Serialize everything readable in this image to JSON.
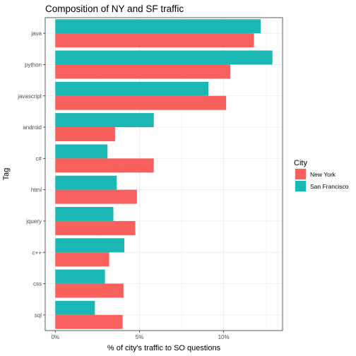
{
  "chart_data": {
    "type": "bar",
    "orientation": "horizontal",
    "title": "Composition of NY and SF traffic",
    "xlabel": "% of city's traffic to SO questions",
    "ylabel": "Tag",
    "categories": [
      "java",
      "python",
      "javascript",
      "android",
      "c#",
      "html",
      "jquery",
      "c++",
      "css",
      "sql"
    ],
    "series": [
      {
        "name": "San Francisco",
        "color": "#1ab7b5",
        "values": [
          12.2,
          12.9,
          9.1,
          5.85,
          3.1,
          3.65,
          3.45,
          4.1,
          2.95,
          2.35
        ]
      },
      {
        "name": "New York",
        "color": "#f8605d",
        "values": [
          11.8,
          10.4,
          10.15,
          3.55,
          5.85,
          4.85,
          4.75,
          3.2,
          4.05,
          4.0
        ]
      }
    ],
    "xticks": [
      0,
      5,
      10
    ],
    "xtick_labels": [
      "0%",
      "5%",
      "10%"
    ],
    "xlim": [
      -0.6,
      13.5
    ],
    "legend": {
      "title": "City",
      "position": "right",
      "entries": [
        "New York",
        "San Francisco"
      ]
    },
    "grid": true
  }
}
